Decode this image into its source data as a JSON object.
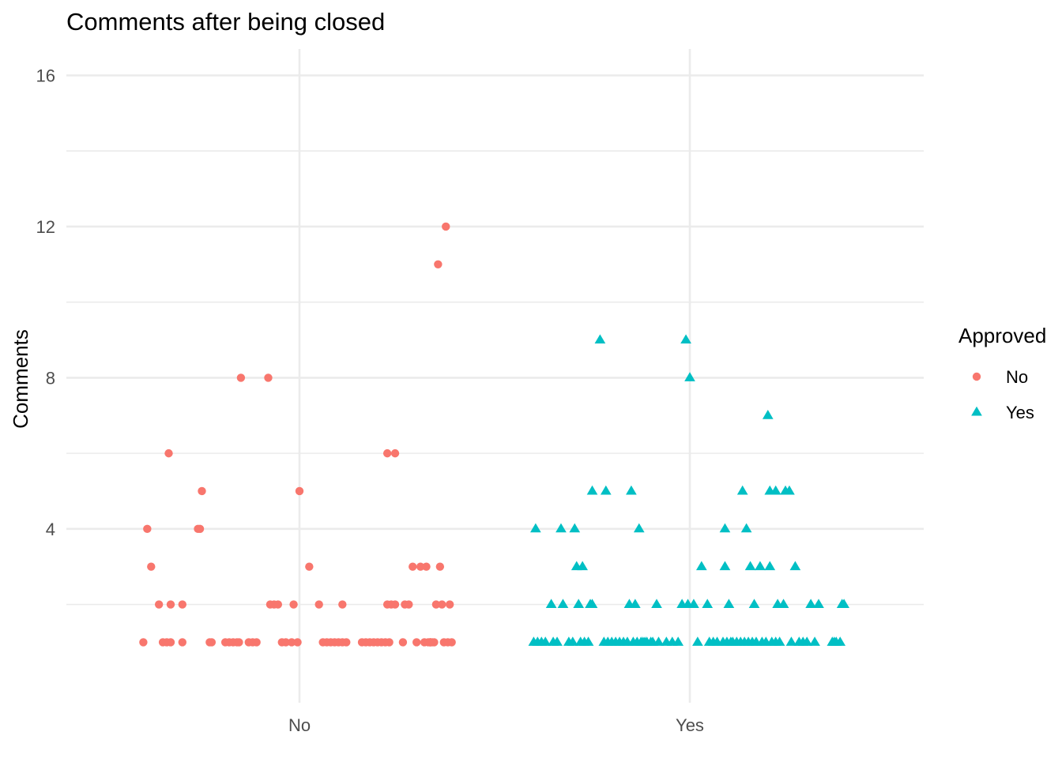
{
  "chart_data": {
    "type": "scatter",
    "title": "Comments after being closed",
    "xlabel": "",
    "ylabel": "Comments",
    "categories": [
      "No",
      "Yes"
    ],
    "ylim": [
      -0.6,
      16.7
    ],
    "y_ticks": [
      4,
      8,
      12,
      16
    ],
    "y_minor_ticks": [
      2,
      6,
      10,
      14
    ],
    "grid": true,
    "jitter": true,
    "legend": {
      "title": "Approved",
      "position": "right",
      "entries": [
        {
          "label": "No",
          "color": "#F8766D",
          "shape": "circle"
        },
        {
          "label": "Yes",
          "color": "#00BFC4",
          "shape": "triangle"
        }
      ]
    },
    "series": [
      {
        "name": "No",
        "category": "No",
        "color": "#F8766D",
        "shape": "circle",
        "points": [
          {
            "x": -0.4,
            "y": 1
          },
          {
            "x": -0.39,
            "y": 4
          },
          {
            "x": -0.38,
            "y": 3
          },
          {
            "x": -0.36,
            "y": 2
          },
          {
            "x": -0.35,
            "y": 1
          },
          {
            "x": -0.34,
            "y": 1
          },
          {
            "x": -0.33,
            "y": 1
          },
          {
            "x": -0.335,
            "y": 6
          },
          {
            "x": -0.33,
            "y": 2
          },
          {
            "x": -0.3,
            "y": 1
          },
          {
            "x": -0.3,
            "y": 2
          },
          {
            "x": -0.26,
            "y": 4
          },
          {
            "x": -0.255,
            "y": 4
          },
          {
            "x": -0.25,
            "y": 5
          },
          {
            "x": -0.23,
            "y": 1
          },
          {
            "x": -0.225,
            "y": 1
          },
          {
            "x": -0.19,
            "y": 1
          },
          {
            "x": -0.18,
            "y": 1
          },
          {
            "x": -0.17,
            "y": 1
          },
          {
            "x": -0.16,
            "y": 1
          },
          {
            "x": -0.155,
            "y": 1
          },
          {
            "x": -0.15,
            "y": 8
          },
          {
            "x": -0.13,
            "y": 1
          },
          {
            "x": -0.12,
            "y": 1
          },
          {
            "x": -0.11,
            "y": 1
          },
          {
            "x": -0.08,
            "y": 8
          },
          {
            "x": -0.075,
            "y": 2
          },
          {
            "x": -0.065,
            "y": 2
          },
          {
            "x": -0.055,
            "y": 2
          },
          {
            "x": -0.045,
            "y": 1
          },
          {
            "x": -0.035,
            "y": 1
          },
          {
            "x": -0.02,
            "y": 1
          },
          {
            "x": -0.015,
            "y": 2
          },
          {
            "x": -0.005,
            "y": 1
          },
          {
            "x": 0.0,
            "y": 5
          },
          {
            "x": 0.025,
            "y": 3
          },
          {
            "x": 0.05,
            "y": 2
          },
          {
            "x": 0.06,
            "y": 1
          },
          {
            "x": 0.07,
            "y": 1
          },
          {
            "x": 0.08,
            "y": 1
          },
          {
            "x": 0.09,
            "y": 1
          },
          {
            "x": 0.1,
            "y": 1
          },
          {
            "x": 0.11,
            "y": 1
          },
          {
            "x": 0.11,
            "y": 2
          },
          {
            "x": 0.12,
            "y": 1
          },
          {
            "x": 0.16,
            "y": 1
          },
          {
            "x": 0.17,
            "y": 1
          },
          {
            "x": 0.18,
            "y": 1
          },
          {
            "x": 0.19,
            "y": 1
          },
          {
            "x": 0.2,
            "y": 1
          },
          {
            "x": 0.21,
            "y": 1
          },
          {
            "x": 0.22,
            "y": 1
          },
          {
            "x": 0.225,
            "y": 2
          },
          {
            "x": 0.225,
            "y": 6
          },
          {
            "x": 0.23,
            "y": 1
          },
          {
            "x": 0.235,
            "y": 2
          },
          {
            "x": 0.245,
            "y": 6
          },
          {
            "x": 0.245,
            "y": 2
          },
          {
            "x": 0.265,
            "y": 1
          },
          {
            "x": 0.27,
            "y": 2
          },
          {
            "x": 0.28,
            "y": 2
          },
          {
            "x": 0.29,
            "y": 3
          },
          {
            "x": 0.3,
            "y": 1
          },
          {
            "x": 0.31,
            "y": 3
          },
          {
            "x": 0.32,
            "y": 1
          },
          {
            "x": 0.325,
            "y": 3
          },
          {
            "x": 0.335,
            "y": 1
          },
          {
            "x": 0.345,
            "y": 1
          },
          {
            "x": 0.335,
            "y": 1
          },
          {
            "x": 0.33,
            "y": 1
          },
          {
            "x": 0.335,
            "y": 1
          },
          {
            "x": 0.34,
            "y": 1
          },
          {
            "x": 0.335,
            "y": 1
          },
          {
            "x": 0.35,
            "y": 2
          },
          {
            "x": 0.355,
            "y": 11
          },
          {
            "x": 0.36,
            "y": 3
          },
          {
            "x": 0.365,
            "y": 2
          },
          {
            "x": 0.37,
            "y": 1
          },
          {
            "x": 0.375,
            "y": 12
          },
          {
            "x": 0.38,
            "y": 1
          },
          {
            "x": 0.385,
            "y": 2
          },
          {
            "x": 0.39,
            "y": 1
          }
        ]
      },
      {
        "name": "Yes",
        "category": "Yes",
        "color": "#00BFC4",
        "shape": "triangle",
        "points": [
          {
            "x": -0.4,
            "y": 1
          },
          {
            "x": -0.395,
            "y": 4
          },
          {
            "x": -0.39,
            "y": 1
          },
          {
            "x": -0.38,
            "y": 1
          },
          {
            "x": -0.37,
            "y": 1
          },
          {
            "x": -0.355,
            "y": 2
          },
          {
            "x": -0.35,
            "y": 1
          },
          {
            "x": -0.34,
            "y": 1
          },
          {
            "x": -0.33,
            "y": 4
          },
          {
            "x": -0.325,
            "y": 2
          },
          {
            "x": -0.31,
            "y": 1
          },
          {
            "x": -0.3,
            "y": 1
          },
          {
            "x": -0.295,
            "y": 4
          },
          {
            "x": -0.29,
            "y": 3
          },
          {
            "x": -0.285,
            "y": 2
          },
          {
            "x": -0.28,
            "y": 1
          },
          {
            "x": -0.275,
            "y": 3
          },
          {
            "x": -0.27,
            "y": 1
          },
          {
            "x": -0.26,
            "y": 1
          },
          {
            "x": -0.255,
            "y": 2
          },
          {
            "x": -0.25,
            "y": 2
          },
          {
            "x": -0.25,
            "y": 5
          },
          {
            "x": -0.23,
            "y": 9
          },
          {
            "x": -0.22,
            "y": 1
          },
          {
            "x": -0.215,
            "y": 5
          },
          {
            "x": -0.21,
            "y": 1
          },
          {
            "x": -0.2,
            "y": 1
          },
          {
            "x": -0.19,
            "y": 1
          },
          {
            "x": -0.18,
            "y": 1
          },
          {
            "x": -0.17,
            "y": 1
          },
          {
            "x": -0.16,
            "y": 1
          },
          {
            "x": -0.155,
            "y": 2
          },
          {
            "x": -0.15,
            "y": 5
          },
          {
            "x": -0.145,
            "y": 1
          },
          {
            "x": -0.14,
            "y": 2
          },
          {
            "x": -0.135,
            "y": 1
          },
          {
            "x": -0.13,
            "y": 4
          },
          {
            "x": -0.125,
            "y": 1
          },
          {
            "x": -0.12,
            "y": 1
          },
          {
            "x": -0.115,
            "y": 1
          },
          {
            "x": -0.11,
            "y": 1
          },
          {
            "x": -0.1,
            "y": 1
          },
          {
            "x": -0.095,
            "y": 1
          },
          {
            "x": -0.085,
            "y": 2
          },
          {
            "x": -0.08,
            "y": 1
          },
          {
            "x": -0.06,
            "y": 1
          },
          {
            "x": -0.045,
            "y": 1
          },
          {
            "x": -0.03,
            "y": 1
          },
          {
            "x": -0.02,
            "y": 2
          },
          {
            "x": -0.01,
            "y": 9
          },
          {
            "x": -0.005,
            "y": 2
          },
          {
            "x": 0.0,
            "y": 8
          },
          {
            "x": 0.01,
            "y": 2
          },
          {
            "x": 0.02,
            "y": 1
          },
          {
            "x": 0.03,
            "y": 3
          },
          {
            "x": 0.045,
            "y": 2
          },
          {
            "x": 0.05,
            "y": 1
          },
          {
            "x": 0.06,
            "y": 1
          },
          {
            "x": 0.07,
            "y": 1
          },
          {
            "x": 0.085,
            "y": 1
          },
          {
            "x": 0.09,
            "y": 3
          },
          {
            "x": 0.095,
            "y": 1
          },
          {
            "x": 0.09,
            "y": 4
          },
          {
            "x": 0.1,
            "y": 2
          },
          {
            "x": 0.105,
            "y": 1
          },
          {
            "x": 0.11,
            "y": 1
          },
          {
            "x": 0.12,
            "y": 1
          },
          {
            "x": 0.13,
            "y": 1
          },
          {
            "x": 0.135,
            "y": 5
          },
          {
            "x": 0.14,
            "y": 1
          },
          {
            "x": 0.145,
            "y": 4
          },
          {
            "x": 0.15,
            "y": 1
          },
          {
            "x": 0.155,
            "y": 3
          },
          {
            "x": 0.16,
            "y": 1
          },
          {
            "x": 0.165,
            "y": 2
          },
          {
            "x": 0.17,
            "y": 1
          },
          {
            "x": 0.18,
            "y": 3
          },
          {
            "x": 0.185,
            "y": 1
          },
          {
            "x": 0.195,
            "y": 1
          },
          {
            "x": 0.2,
            "y": 7
          },
          {
            "x": 0.205,
            "y": 5
          },
          {
            "x": 0.205,
            "y": 3
          },
          {
            "x": 0.21,
            "y": 1
          },
          {
            "x": 0.22,
            "y": 1
          },
          {
            "x": 0.22,
            "y": 5
          },
          {
            "x": 0.225,
            "y": 2
          },
          {
            "x": 0.23,
            "y": 1
          },
          {
            "x": 0.24,
            "y": 2
          },
          {
            "x": 0.245,
            "y": 5
          },
          {
            "x": 0.255,
            "y": 5
          },
          {
            "x": 0.26,
            "y": 1
          },
          {
            "x": 0.27,
            "y": 3
          },
          {
            "x": 0.28,
            "y": 1
          },
          {
            "x": 0.29,
            "y": 1
          },
          {
            "x": 0.3,
            "y": 1
          },
          {
            "x": 0.31,
            "y": 2
          },
          {
            "x": 0.32,
            "y": 1
          },
          {
            "x": 0.33,
            "y": 2
          },
          {
            "x": 0.365,
            "y": 1
          },
          {
            "x": 0.37,
            "y": 1
          },
          {
            "x": 0.375,
            "y": 1
          },
          {
            "x": 0.385,
            "y": 1
          },
          {
            "x": 0.39,
            "y": 2
          },
          {
            "x": 0.395,
            "y": 2
          }
        ]
      }
    ]
  }
}
